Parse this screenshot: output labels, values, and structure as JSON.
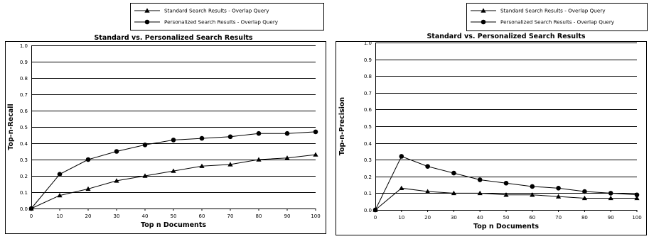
{
  "chart_data": [
    {
      "type": "line",
      "title": "Standard vs. Personalized Search Results",
      "xlabel": "Top n Documents",
      "ylabel": "Top-n-Recall",
      "categories": [
        "0",
        "10",
        "20",
        "30",
        "40",
        "50",
        "60",
        "70",
        "80",
        "90",
        "100"
      ],
      "yticks": [
        "0.0",
        "0.1",
        "0.2",
        "0.3",
        "0.4",
        "0.5",
        "0.6",
        "0.7",
        "0.8",
        "0.9",
        "1.0"
      ],
      "ylim": [
        0,
        1
      ],
      "grid": true,
      "legend_position": "top-right",
      "series": [
        {
          "name": "Standard Search Results - Overlap Query",
          "marker": "triangle",
          "values": [
            0,
            0.08,
            0.12,
            0.17,
            0.2,
            0.23,
            0.26,
            0.27,
            0.3,
            0.31,
            0.33
          ]
        },
        {
          "name": "Personalized Search Results - Overlap Query",
          "marker": "circle",
          "values": [
            0,
            0.21,
            0.3,
            0.35,
            0.39,
            0.42,
            0.43,
            0.44,
            0.46,
            0.46,
            0.47
          ]
        }
      ]
    },
    {
      "type": "line",
      "title": "Standard vs. Personalized Search Results",
      "xlabel": "Top n Documents",
      "ylabel": "Top-n-Precision",
      "categories": [
        "0",
        "10",
        "20",
        "30",
        "40",
        "50",
        "60",
        "70",
        "80",
        "90",
        "100"
      ],
      "yticks": [
        "0.0",
        "0.1",
        "0.2",
        "0.3",
        "0.4",
        "0.5",
        "0.6",
        "0.7",
        "0.8",
        "0.9",
        "1.0"
      ],
      "ylim": [
        0,
        1
      ],
      "grid": true,
      "legend_position": "top-right",
      "series": [
        {
          "name": "Standard Search Results - Overlap Query",
          "marker": "triangle",
          "values": [
            0,
            0.13,
            0.11,
            0.1,
            0.1,
            0.09,
            0.09,
            0.08,
            0.07,
            0.07,
            0.07
          ]
        },
        {
          "name": "Personalized Search Results - Overlap Query",
          "marker": "circle",
          "values": [
            0,
            0.32,
            0.26,
            0.22,
            0.18,
            0.16,
            0.14,
            0.13,
            0.11,
            0.1,
            0.09
          ]
        }
      ]
    }
  ]
}
